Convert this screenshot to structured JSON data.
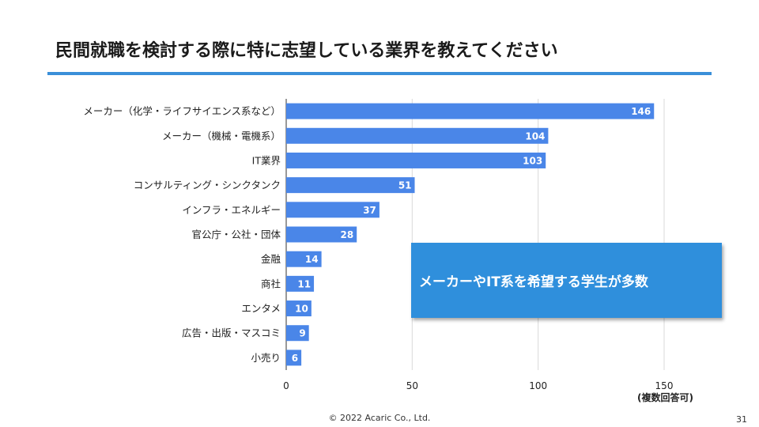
{
  "slide": {
    "title": "民間就職を検討する際に特に志望している業界を教えてください",
    "callout": "メーカーやIT系を希望する学生が多数",
    "note": "(複数回答可)",
    "footer": "© 2022 Acaric Co., Ltd.",
    "page_number": "31"
  },
  "colors": {
    "bar": "#4a86e8",
    "accent": "#3a8fd9",
    "callout": "#2f8fdc",
    "grid": "#d9d9d9"
  },
  "chart_data": {
    "type": "bar",
    "orientation": "horizontal",
    "categories": [
      "メーカー（化学・ライフサイエンス系など）",
      "メーカー（機械・電機系）",
      "IT業界",
      "コンサルティング・シンクタンク",
      "インフラ・エネルギー",
      "官公庁・公社・団体",
      "金融",
      "商社",
      "エンタメ",
      "広告・出版・マスコミ",
      "小売り"
    ],
    "values": [
      146,
      104,
      103,
      51,
      37,
      28,
      14,
      11,
      10,
      9,
      6
    ],
    "xlim": [
      0,
      150
    ],
    "xticks": [
      0,
      50,
      100,
      150
    ],
    "grid": true,
    "data_labels": true
  }
}
